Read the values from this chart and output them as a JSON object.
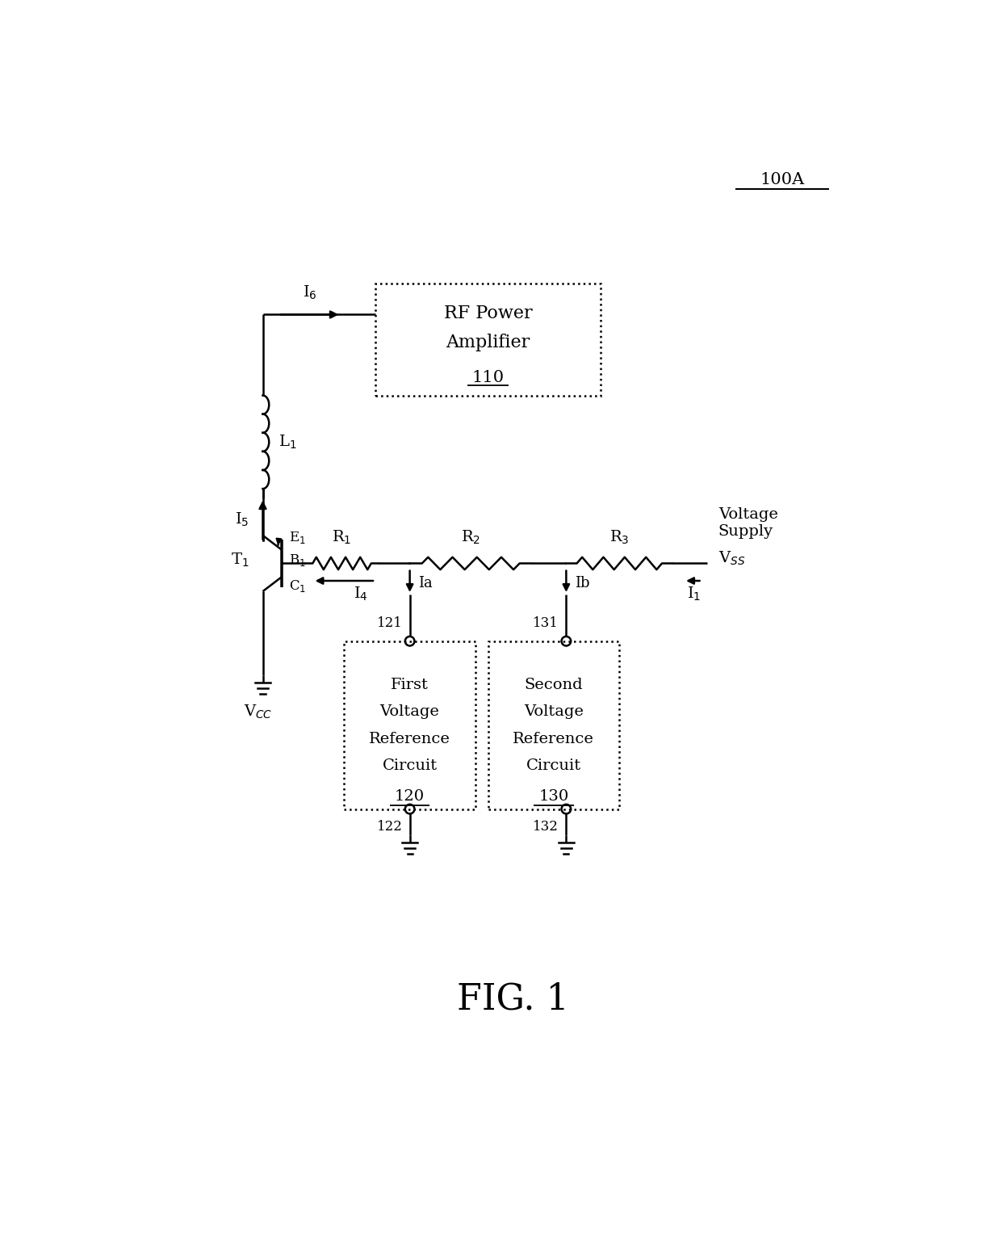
{
  "fig_width": 12.4,
  "fig_height": 15.45,
  "dpi": 100,
  "bg_color": "#ffffff",
  "lc": "#000000",
  "lw": 1.8,
  "label_100A": "100A",
  "label_fig": "FIG. 1",
  "rf_text1": "RF Power",
  "rf_text2": "Amplifier",
  "rf_text3": "110",
  "fv_lines": [
    "First",
    "Voltage",
    "Reference",
    "Circuit",
    "120"
  ],
  "sv_lines": [
    "Second",
    "Voltage",
    "Reference",
    "Circuit",
    "130"
  ],
  "vcc_label": "V$_{CC}$",
  "vss_label": "V$_{SS}$",
  "vs_label": "Voltage\nSupply"
}
